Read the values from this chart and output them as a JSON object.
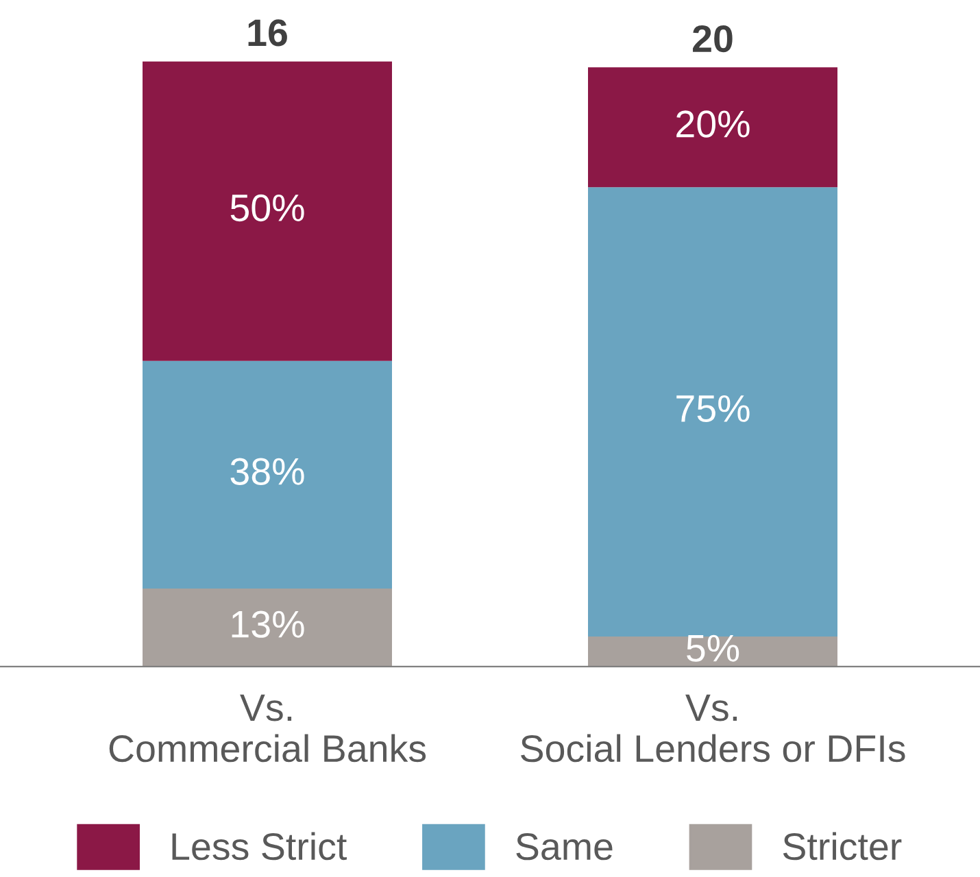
{
  "chart_data": {
    "type": "bar",
    "stacked": true,
    "categories": [
      "Vs.\nCommercial Banks",
      "Vs.\nSocial Lenders or DFIs"
    ],
    "series": [
      {
        "name": "Stricter",
        "color": "#a8a19d",
        "values": [
          13,
          5
        ],
        "value_labels": [
          "13%",
          "5%"
        ]
      },
      {
        "name": "Same",
        "color": "#6aa4c0",
        "values": [
          38,
          75
        ],
        "value_labels": [
          "38%",
          "75%"
        ]
      },
      {
        "name": "Less Strict",
        "color": "#8b1846",
        "values": [
          50,
          20
        ],
        "value_labels": [
          "50%",
          "20%"
        ]
      }
    ],
    "annotations": [
      {
        "text": "16",
        "x": "Vs.\nCommercial Banks",
        "y": 101
      },
      {
        "text": "20",
        "x": "Vs.\nSocial Lenders or DFIs",
        "y": 100
      }
    ],
    "legend": "bottom",
    "grid": false
  }
}
